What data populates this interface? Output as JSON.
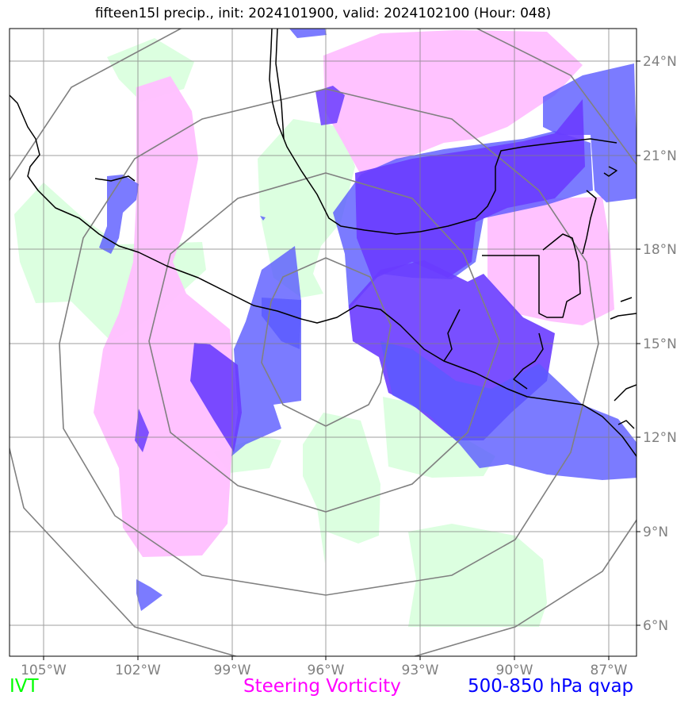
{
  "title": "fifteen15l precip., init: 2024101900, valid: 2024102100 (Hour: 048)",
  "lat_labels": [
    "24°N",
    "21°N",
    "18°N",
    "15°N",
    "12°N",
    "9°N",
    "6°N"
  ],
  "lon_labels": [
    "105°W",
    "102°W",
    "99°W",
    "96°W",
    "93°W",
    "90°W",
    "87°W"
  ],
  "legend": {
    "ivt": "IVT",
    "steering_vorticity": "Steering Vorticity",
    "qvap": "500-850 hPa qvap"
  },
  "colors": {
    "ivt": "#00ff00",
    "steering_vorticity": "#ff00ff",
    "qvap": "#0000ff",
    "ivt_fill": "#dcffe0",
    "vorticity_fill": "#ffbfff",
    "qvap_fill": "#7a7aff",
    "qvap_strong_fill": "#6a3cff",
    "gridline": "#808080",
    "coastline": "#000000"
  }
}
